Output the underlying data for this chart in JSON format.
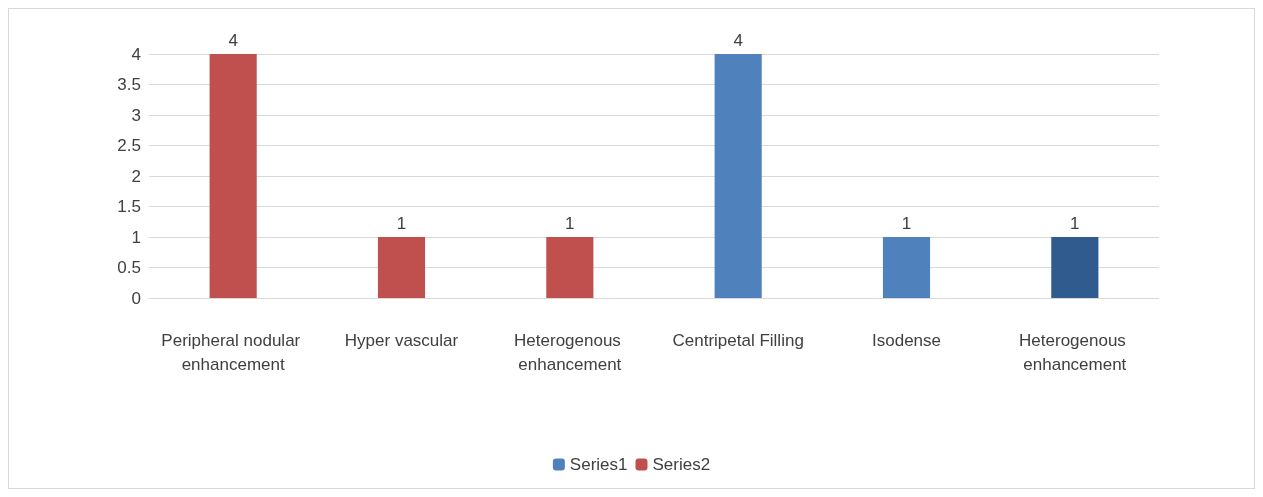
{
  "chart_data": {
    "type": "bar",
    "categories": [
      "Peripheral nodular enhancement",
      "Hyper vascular",
      "Heterogenous enhancement",
      "Centripetal Filling",
      "Isodense",
      "Heterogenous enhancement"
    ],
    "series": [
      {
        "name": "Series1",
        "color": "#4f81bd",
        "colors": [
          null,
          null,
          null,
          "#4f81bd",
          "#4f81bd",
          "#2f5b8f"
        ],
        "values": [
          null,
          null,
          null,
          4,
          1,
          1
        ]
      },
      {
        "name": "Series2",
        "color": "#c0504d",
        "values": [
          4,
          1,
          1,
          null,
          null,
          null
        ]
      }
    ],
    "ylim": [
      0,
      4
    ],
    "yticks": [
      0,
      0.5,
      1,
      1.5,
      2,
      2.5,
      3,
      3.5,
      4
    ],
    "grid": "y",
    "legend": "bottom",
    "data_labels": true
  }
}
